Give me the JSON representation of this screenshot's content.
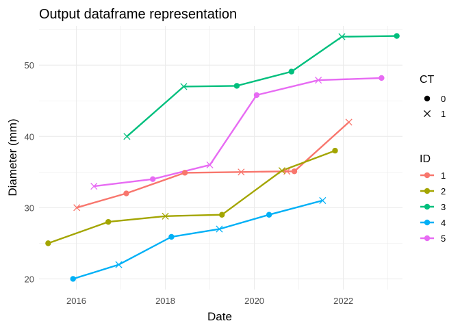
{
  "chart_data": {
    "type": "line",
    "title": "Output dataframe representation",
    "xlabel": "Date",
    "ylabel": "Diameter (mm)",
    "x_ticks": [
      "2016",
      "2018",
      "2020",
      "2022"
    ],
    "y_ticks": [
      20,
      30,
      40,
      50
    ],
    "xlim": [
      "2015-03-01",
      "2023-05-01"
    ],
    "ylim": [
      18.5,
      55.5
    ],
    "grid": true,
    "legend_position": "right",
    "shape_legend": {
      "title": "CT",
      "entries": [
        {
          "label": "0",
          "shape": "circle"
        },
        {
          "label": "1",
          "shape": "cross"
        }
      ]
    },
    "color_legend": {
      "title": "ID",
      "entries": [
        "1",
        "2",
        "3",
        "4",
        "5"
      ]
    },
    "series": [
      {
        "name": "1",
        "color": "#F8766D",
        "points": [
          {
            "x": "2016-01-05",
            "y": 30,
            "ct": 1
          },
          {
            "x": "2017-02-15",
            "y": 32,
            "ct": 0
          },
          {
            "x": "2018-06-10",
            "y": 34.9,
            "ct": 0
          },
          {
            "x": "2019-09-15",
            "y": 35.0,
            "ct": 1
          },
          {
            "x": "2020-09-25",
            "y": 35.1,
            "ct": 1
          },
          {
            "x": "2020-11-25",
            "y": 35.1,
            "ct": 0
          },
          {
            "x": "2022-02-15",
            "y": 42,
            "ct": 1
          }
        ]
      },
      {
        "name": "2",
        "color": "#A3A500",
        "points": [
          {
            "x": "2015-05-15",
            "y": 25,
            "ct": 0
          },
          {
            "x": "2016-09-20",
            "y": 28,
            "ct": 0
          },
          {
            "x": "2018-01-01",
            "y": 28.8,
            "ct": 1
          },
          {
            "x": "2019-04-10",
            "y": 29.0,
            "ct": 0
          },
          {
            "x": "2020-08-15",
            "y": 35.2,
            "ct": 1
          },
          {
            "x": "2021-10-25",
            "y": 38,
            "ct": 0
          }
        ]
      },
      {
        "name": "3",
        "color": "#00BF7D",
        "points": [
          {
            "x": "2017-02-20",
            "y": 40,
            "ct": 1
          },
          {
            "x": "2018-06-01",
            "y": 47,
            "ct": 1
          },
          {
            "x": "2019-08-10",
            "y": 47.1,
            "ct": 0
          },
          {
            "x": "2020-11-01",
            "y": 49.1,
            "ct": 0
          },
          {
            "x": "2021-12-20",
            "y": 54.0,
            "ct": 1
          },
          {
            "x": "2023-03-15",
            "y": 54.1,
            "ct": 0
          }
        ]
      },
      {
        "name": "4",
        "color": "#00B0F6",
        "points": [
          {
            "x": "2015-12-05",
            "y": 20,
            "ct": 0
          },
          {
            "x": "2016-12-15",
            "y": 22,
            "ct": 1
          },
          {
            "x": "2018-02-20",
            "y": 25.9,
            "ct": 0
          },
          {
            "x": "2019-03-20",
            "y": 27,
            "ct": 1
          },
          {
            "x": "2020-05-01",
            "y": 29,
            "ct": 0
          },
          {
            "x": "2021-07-15",
            "y": 31,
            "ct": 1
          }
        ]
      },
      {
        "name": "5",
        "color": "#E76BF3",
        "points": [
          {
            "x": "2016-05-25",
            "y": 33,
            "ct": 1
          },
          {
            "x": "2017-09-20",
            "y": 34,
            "ct": 0
          },
          {
            "x": "2019-01-01",
            "y": 36,
            "ct": 1
          },
          {
            "x": "2020-01-20",
            "y": 45.8,
            "ct": 0
          },
          {
            "x": "2021-06-10",
            "y": 47.9,
            "ct": 1
          },
          {
            "x": "2022-11-10",
            "y": 48.2,
            "ct": 0
          }
        ]
      }
    ]
  }
}
